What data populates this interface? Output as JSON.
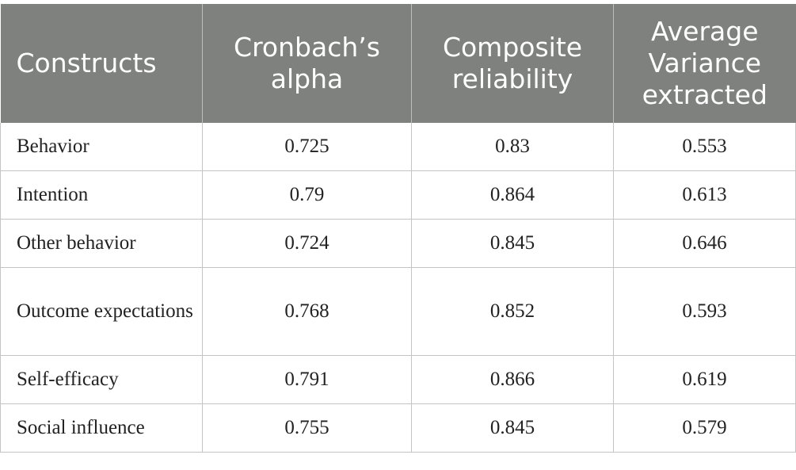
{
  "table": {
    "headers": [
      "Constructs",
      "Cronbach’s alpha",
      "Composite reliability",
      "Average Variance extracted"
    ],
    "rows": [
      [
        "Behavior",
        "0.725",
        "0.83",
        "0.553"
      ],
      [
        "Intention",
        "0.79",
        "0.864",
        "0.613"
      ],
      [
        "Other behavior",
        "0.724",
        "0.845",
        "0.646"
      ],
      [
        "Outcome expectations",
        "0.768",
        "0.852",
        "0.593"
      ],
      [
        "Self-efficacy",
        "0.791",
        "0.866",
        "0.619"
      ],
      [
        "Social influence",
        "0.755",
        "0.845",
        "0.579"
      ]
    ]
  }
}
